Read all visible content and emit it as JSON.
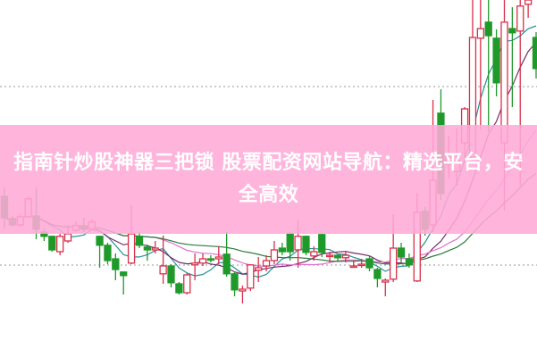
{
  "banner": {
    "title": "指南针炒股神器三把锁 股票配资网站导航：精选平台，安全高效"
  },
  "chart_data": {
    "type": "candlestick",
    "title": "",
    "xlabel": "",
    "ylabel": "",
    "ylim": [
      0,
      100
    ],
    "grid": false,
    "colors": {
      "up": "#d9304a",
      "down": "#1f9a2a",
      "reference": "#999999",
      "ma": [
        "#2a8f9a",
        "#7a2a6a",
        "#e070d0",
        "#2a7a3a"
      ]
    },
    "moving_averages": [
      5,
      10,
      20,
      30
    ],
    "reference_lines": [
      75.75,
      25.75
    ],
    "candles_ohlc": [
      [
        45,
        39,
        47.5,
        36
      ],
      [
        38.8,
        37,
        39.5,
        36.5
      ],
      [
        37,
        39.3,
        40,
        36.5
      ],
      [
        39.3,
        44.3,
        45,
        39
      ],
      [
        39.5,
        35.8,
        47.5,
        33
      ],
      [
        35,
        33.8,
        36,
        32.5
      ],
      [
        33.8,
        30,
        34,
        29.5
      ],
      [
        29.5,
        33.8,
        34.5,
        28.5
      ],
      [
        32.5,
        34.5,
        37,
        32
      ],
      [
        35.5,
        36.8,
        38,
        35
      ],
      [
        36.8,
        35.8,
        39,
        35
      ],
      [
        35.8,
        37.8,
        38.5,
        35.5
      ],
      [
        33.8,
        31.3,
        34,
        25
      ],
      [
        31.3,
        27,
        32,
        26
      ],
      [
        27.5,
        24.5,
        29,
        21.5
      ],
      [
        23.8,
        22.8,
        24,
        17.5
      ],
      [
        26.3,
        34.5,
        42.5,
        26
      ],
      [
        33.8,
        31.3,
        35,
        30.5
      ],
      [
        30.8,
        30,
        31.5,
        27
      ],
      [
        30,
        30.5,
        32.5,
        29
      ],
      [
        23.3,
        25.5,
        34,
        20.5
      ],
      [
        25.5,
        20.8,
        26,
        19.5
      ],
      [
        20.5,
        18,
        21,
        17.5
      ],
      [
        18,
        23,
        23.5,
        17.5
      ],
      [
        25.8,
        26.3,
        29,
        21.5
      ],
      [
        26.3,
        27.5,
        29,
        25.5
      ],
      [
        27.5,
        27.3,
        28.5,
        26.5
      ],
      [
        27.5,
        28,
        31,
        26
      ],
      [
        28.8,
        23.3,
        35,
        22.5
      ],
      [
        23.3,
        18.8,
        24,
        17
      ],
      [
        18.5,
        19,
        20,
        15
      ],
      [
        19.3,
        25.8,
        26,
        18.5
      ],
      [
        24.3,
        25,
        28,
        21
      ],
      [
        25.5,
        27,
        28.5,
        24
      ],
      [
        27,
        30,
        32.5,
        26
      ],
      [
        30.5,
        29.5,
        32,
        28.5
      ],
      [
        34.5,
        29.5,
        35,
        27
      ],
      [
        30,
        33.8,
        38.5,
        25
      ],
      [
        33.8,
        29.3,
        34,
        28.5
      ],
      [
        28.3,
        29.5,
        31,
        27
      ],
      [
        34.3,
        29.3,
        34.5,
        28
      ],
      [
        28.3,
        28.5,
        29.5,
        26.5
      ],
      [
        28.5,
        27.8,
        29,
        27
      ],
      [
        27.8,
        28.5,
        29.5,
        26.5
      ],
      [
        25.3,
        25.5,
        27,
        25
      ],
      [
        25.8,
        26,
        27.5,
        25
      ],
      [
        27.5,
        25,
        28.5,
        24
      ],
      [
        24.5,
        22,
        25,
        19.5
      ],
      [
        21,
        21.5,
        22,
        17
      ],
      [
        21.8,
        30.5,
        40,
        21
      ],
      [
        30.5,
        28,
        32,
        26.5
      ],
      [
        27.5,
        25.8,
        29,
        25
      ],
      [
        21.3,
        40.5,
        46,
        21
      ],
      [
        40.8,
        35.8,
        42,
        34
      ],
      [
        37,
        49.5,
        72,
        35
      ],
      [
        68.3,
        45.8,
        75,
        44
      ],
      [
        54,
        56,
        62,
        50
      ],
      [
        52,
        55,
        64,
        48
      ],
      [
        60,
        69.5,
        70,
        55
      ],
      [
        56,
        89.5,
        100,
        55
      ],
      [
        89.3,
        92,
        100,
        63.8
      ],
      [
        93.8,
        90,
        100,
        63
      ],
      [
        89.3,
        76.8,
        91.8,
        73
      ],
      [
        60,
        93.8,
        100,
        41
      ],
      [
        92,
        90.8,
        98,
        70
      ],
      [
        91.3,
        98.3,
        100,
        48
      ],
      [
        98.8,
        100,
        100,
        95
      ],
      [
        89.5,
        80.8,
        91,
        78
      ]
    ]
  }
}
